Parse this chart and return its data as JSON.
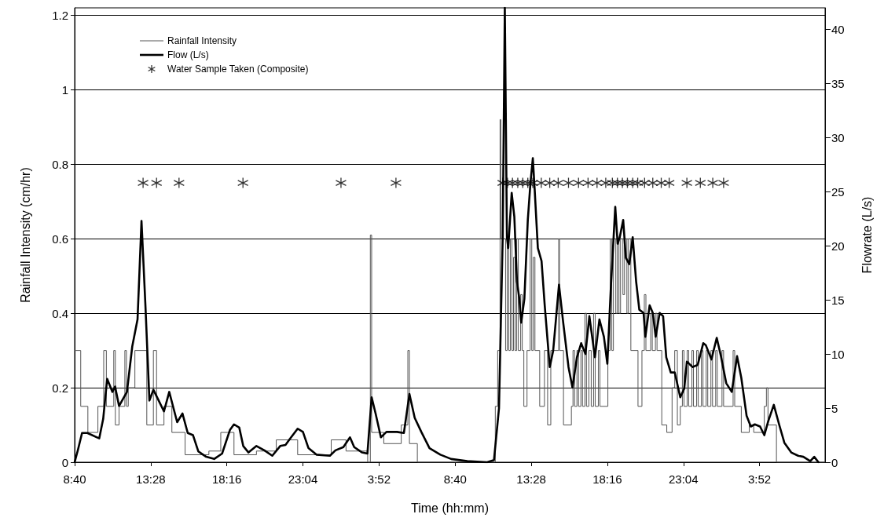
{
  "chart_data": {
    "type": "line",
    "xlabel": "Time (hh:mm)",
    "ylabel": "Rainfall Intensity (cm/hr)",
    "y2label": "Flowrate (L/s)",
    "xlim": [
      "--01-01T08:40",
      "--01-03T08:00"
    ],
    "xticks": [
      {
        "value": "--01-01T08:40",
        "label": "8:40"
      },
      {
        "value": "--01-01T13:28",
        "label": "13:28"
      },
      {
        "value": "--01-01T18:16",
        "label": "18:16"
      },
      {
        "value": "--01-01T23:04",
        "label": "23:04"
      },
      {
        "value": "--01-02T03:52",
        "label": "3:52"
      },
      {
        "value": "--01-02T08:40",
        "label": "8:40"
      },
      {
        "value": "--01-02T13:28",
        "label": "13:28"
      },
      {
        "value": "--01-02T18:16",
        "label": "18:16"
      },
      {
        "value": "--01-02T23:04",
        "label": "23:04"
      },
      {
        "value": "--01-03T03:52",
        "label": "3:52"
      }
    ],
    "ylim": [
      0,
      1.22
    ],
    "yticks": [
      0,
      0.2,
      0.4,
      0.6,
      0.8,
      1,
      1.2
    ],
    "y2lim": [
      0,
      42
    ],
    "y2ticks": [
      0,
      5,
      10,
      15,
      20,
      25,
      30,
      35,
      40
    ],
    "grid": "y",
    "legend": "top left",
    "series": [
      {
        "name": "Rainfall Intensity",
        "type": "step",
        "color": "#555555",
        "marker": "none",
        "x": [
          "--01-01T08:40",
          "--01-01T09:03",
          "--01-01T09:30",
          "--01-01T10:08",
          "--01-01T10:30",
          "--01-01T10:40",
          "--01-01T11:08",
          "--01-01T11:14",
          "--01-01T11:28",
          "--01-01T11:50",
          "--01-01T11:56",
          "--01-01T12:03",
          "--01-01T12:28",
          "--01-01T13:13",
          "--01-01T13:38",
          "--01-01T13:50",
          "--01-01T14:18",
          "--01-01T14:48",
          "--01-01T15:38",
          "--01-01T17:08",
          "--01-01T17:53",
          "--01-01T18:43",
          "--01-01T20:08",
          "--01-01T21:23",
          "--01-01T22:44",
          "--01-02T00:51",
          "--01-02T01:47",
          "--01-02T03:09",
          "--01-02T03:19",
          "--01-02T03:24",
          "--01-02T04:10",
          "--01-02T05:16",
          "--01-02T05:41",
          "--01-02T05:47",
          "--01-02T06:17",
          "--01-02T11:12",
          "--01-02T11:21",
          "--01-02T11:30",
          "--01-02T11:33",
          "--01-02T11:51",
          "--01-02T11:57",
          "--01-02T12:03",
          "--01-02T12:09",
          "--01-02T12:15",
          "--01-02T12:21",
          "--01-02T12:27",
          "--01-02T12:33",
          "--01-02T12:39",
          "--01-02T12:48",
          "--01-02T12:54",
          "--01-02T13:00",
          "--01-02T13:12",
          "--01-02T13:24",
          "--01-02T13:30",
          "--01-02T13:36",
          "--01-02T13:42",
          "--01-02T14:00",
          "--01-02T14:18",
          "--01-02T14:30",
          "--01-02T14:42",
          "--01-02T15:12",
          "--01-02T15:15",
          "--01-02T15:30",
          "--01-02T16:00",
          "--01-02T16:06",
          "--01-02T16:12",
          "--01-02T16:21",
          "--01-02T16:27",
          "--01-02T16:36",
          "--01-02T16:42",
          "--01-02T16:51",
          "--01-02T16:57",
          "--01-02T17:06",
          "--01-02T17:15",
          "--01-02T17:24",
          "--01-02T17:30",
          "--01-02T17:42",
          "--01-02T17:48",
          "--01-02T18:18",
          "--01-02T18:27",
          "--01-02T18:33",
          "--01-02T18:39",
          "--01-02T18:48",
          "--01-02T18:54",
          "--01-02T19:00",
          "--01-02T19:06",
          "--01-02T19:15",
          "--01-02T19:21",
          "--01-02T19:30",
          "--01-02T19:36",
          "--01-02T19:45",
          "--01-02T20:12",
          "--01-02T20:27",
          "--01-02T20:36",
          "--01-02T20:42",
          "--01-02T21:00",
          "--01-02T21:06",
          "--01-02T21:18",
          "--01-02T21:24",
          "--01-02T21:42",
          "--01-02T22:01",
          "--01-02T22:21",
          "--01-02T22:31",
          "--01-02T22:41",
          "--01-02T22:52",
          "--01-02T23:00",
          "--01-02T23:06",
          "--01-02T23:18",
          "--01-02T23:24",
          "--01-02T23:36",
          "--01-02T23:42",
          "--01-02T23:54",
          "--01-03T00:00",
          "--01-03T00:12",
          "--01-03T00:18",
          "--01-03T00:30",
          "--01-03T00:36",
          "--01-03T00:48",
          "--01-03T00:54",
          "--01-03T01:06",
          "--01-03T01:12",
          "--01-03T01:30",
          "--01-03T01:36",
          "--01-03T02:12",
          "--01-03T02:18",
          "--01-03T02:43",
          "--01-03T03:13",
          "--01-03T03:30",
          "--01-03T04:10",
          "--01-03T04:18",
          "--01-03T04:24",
          "--01-03T04:56",
          "--01-03T08:00"
        ],
        "values": [
          0.3,
          0.15,
          0.08,
          0.15,
          0.3,
          0.15,
          0.3,
          0.1,
          0.15,
          0.3,
          0.15,
          0.2,
          0.3,
          0.1,
          0.3,
          0.1,
          0.15,
          0.08,
          0.02,
          0.03,
          0.08,
          0.02,
          0.03,
          0.06,
          0.02,
          0.06,
          0.03,
          0,
          0.61,
          0.08,
          0.05,
          0.1,
          0.3,
          0.05,
          0,
          0.15,
          0.3,
          0.92,
          0.6,
          0.3,
          0.6,
          0.3,
          0.6,
          0.3,
          0.55,
          0.3,
          0.6,
          0.3,
          0.45,
          0.3,
          0.15,
          0.3,
          0.6,
          0.3,
          0.55,
          0.3,
          0.15,
          0.3,
          0.1,
          0.3,
          0.6,
          0.3,
          0.1,
          0.15,
          0.3,
          0.15,
          0.3,
          0.15,
          0.3,
          0.15,
          0.4,
          0.15,
          0.3,
          0.15,
          0.4,
          0.15,
          0.3,
          0.15,
          0.3,
          0.6,
          0.3,
          0.6,
          0.4,
          0.6,
          0.4,
          0.6,
          0.45,
          0.6,
          0.4,
          0.6,
          0.3,
          0.15,
          0.3,
          0.45,
          0.3,
          0.4,
          0.3,
          0.4,
          0.3,
          0.1,
          0.08,
          0.2,
          0.3,
          0.1,
          0.15,
          0.3,
          0.15,
          0.3,
          0.15,
          0.3,
          0.15,
          0.3,
          0.15,
          0.3,
          0.15,
          0.3,
          0.15,
          0.3,
          0.15,
          0.3,
          0.15,
          0.3,
          0.15,
          0.3,
          0.15,
          0.08,
          0.1,
          0.08,
          0.15,
          0.2,
          0.1,
          0,
          0
        ]
      },
      {
        "name": "Flow (L/s)",
        "axis": "y2",
        "color": "#000000",
        "marker": "none",
        "x": [
          "--01-01T08:40",
          "--01-01T08:53",
          "--01-01T09:08",
          "--01-01T09:28",
          "--01-01T10:13",
          "--01-01T10:28",
          "--01-01T10:43",
          "--01-01T11:03",
          "--01-01T11:13",
          "--01-01T11:28",
          "--01-01T11:58",
          "--01-01T12:18",
          "--01-01T12:38",
          "--01-01T12:53",
          "--01-01T13:08",
          "--01-01T13:23",
          "--01-01T13:38",
          "--01-01T13:58",
          "--01-01T14:18",
          "--01-01T14:38",
          "--01-01T15:08",
          "--01-01T15:28",
          "--01-01T15:48",
          "--01-01T16:08",
          "--01-01T16:28",
          "--01-01T16:58",
          "--01-01T17:28",
          "--01-01T17:58",
          "--01-01T18:28",
          "--01-01T18:43",
          "--01-01T19:03",
          "--01-01T19:18",
          "--01-01T19:38",
          "--01-01T20:08",
          "--01-01T20:38",
          "--01-01T21:08",
          "--01-01T21:38",
          "--01-01T21:58",
          "--01-01T22:13",
          "--01-01T22:44",
          "--01-01T23:04",
          "--01-01T23:25",
          "--01-01T23:55",
          "--01-02T00:46",
          "--01-02T01:07",
          "--01-02T01:37",
          "--01-02T02:02",
          "--01-02T02:18",
          "--01-02T02:48",
          "--01-02T03:08",
          "--01-02T03:24",
          "--01-02T03:39",
          "--01-02T03:59",
          "--01-02T04:20",
          "--01-02T05:00",
          "--01-02T05:26",
          "--01-02T05:47",
          "--01-02T06:07",
          "--01-02T06:32",
          "--01-02T07:03",
          "--01-02T07:44",
          "--01-02T08:25",
          "--01-02T09:26",
          "--01-02T10:41",
          "--01-02T11:07",
          "--01-02T11:26",
          "--01-02T11:40",
          "--01-02T11:48",
          "--01-02T11:56",
          "--01-02T12:01",
          "--01-02T12:14",
          "--01-02T12:24",
          "--01-02T12:34",
          "--01-02T12:43",
          "--01-02T12:50",
          "--01-02T13:02",
          "--01-02T13:15",
          "--01-02T13:25",
          "--01-02T13:34",
          "--01-02T13:41",
          "--01-02T13:53",
          "--01-02T14:07",
          "--01-02T14:19",
          "--01-02T14:38",
          "--01-02T14:51",
          "--01-02T15:13",
          "--01-02T15:29",
          "--01-02T15:49",
          "--01-02T16:04",
          "--01-02T16:21",
          "--01-02T16:37",
          "--01-02T16:53",
          "--01-02T17:08",
          "--01-02T17:29",
          "--01-02T17:46",
          "--01-02T18:03",
          "--01-02T18:16",
          "--01-02T18:29",
          "--01-02T18:46",
          "--01-02T18:55",
          "--01-02T19:03",
          "--01-02T19:16",
          "--01-02T19:26",
          "--01-02T19:39",
          "--01-02T19:52",
          "--01-02T20:05",
          "--01-02T20:17",
          "--01-02T20:33",
          "--01-02T20:40",
          "--01-02T20:56",
          "--01-02T21:08",
          "--01-02T21:19",
          "--01-02T21:34",
          "--01-02T21:47",
          "--01-02T21:59",
          "--01-02T22:16",
          "--01-02T22:31",
          "--01-02T22:52",
          "--01-02T23:07",
          "--01-02T23:17",
          "--01-02T23:38",
          "--01-02T23:58",
          "--01-03T00:19",
          "--01-03T00:29",
          "--01-03T00:50",
          "--01-03T01:10",
          "--01-03T01:26",
          "--01-03T01:46",
          "--01-03T02:07",
          "--01-03T02:27",
          "--01-03T02:43",
          "--01-03T03:03",
          "--01-03T03:19",
          "--01-03T03:34",
          "--01-03T03:54",
          "--01-03T04:10",
          "--01-03T04:25",
          "--01-03T04:46",
          "--01-03T05:06",
          "--01-03T05:26",
          "--01-03T05:52",
          "--01-03T06:18",
          "--01-03T06:38",
          "--01-03T07:04",
          "--01-03T07:19",
          "--01-03T07:35"
        ],
        "values": [
          0,
          1.2,
          2.7,
          2.7,
          2.2,
          4.0,
          7.7,
          6.5,
          7.0,
          5.2,
          6.5,
          10.7,
          13.2,
          22.3,
          14.4,
          5.7,
          6.7,
          5.7,
          4.7,
          6.5,
          3.7,
          4.5,
          2.7,
          2.5,
          1.0,
          0.5,
          0.3,
          0.8,
          3.0,
          3.5,
          3.2,
          1.5,
          0.9,
          1.5,
          1.1,
          0.6,
          1.5,
          1.6,
          2.1,
          3.1,
          2.8,
          1.3,
          0.7,
          0.6,
          1.1,
          1.4,
          2.3,
          1.4,
          0.9,
          0.8,
          6.0,
          4.5,
          2.3,
          2.8,
          2.8,
          2.7,
          6.3,
          4.1,
          2.8,
          1.3,
          0.7,
          0.3,
          0.1,
          0,
          0.2,
          5.0,
          20.8,
          42,
          20.8,
          19.8,
          24.9,
          22.7,
          16.7,
          15.1,
          12.9,
          15.1,
          22.4,
          25.8,
          28.1,
          25.2,
          19.8,
          18.6,
          14.5,
          8.8,
          10.3,
          16.4,
          12.9,
          8.8,
          6.9,
          9.7,
          11.0,
          10.0,
          13.5,
          9.7,
          13.2,
          11.6,
          9.1,
          16.0,
          23.6,
          20.2,
          20.8,
          22.4,
          18.9,
          18.3,
          20.8,
          16.7,
          14.1,
          13.8,
          11.6,
          14.5,
          13.8,
          11.6,
          13.8,
          13.5,
          9.7,
          8.3,
          8.3,
          6.0,
          6.8,
          9.3,
          8.8,
          9.0,
          11.0,
          10.8,
          9.5,
          11.5,
          9.8,
          7.3,
          6.5,
          9.8,
          7.8,
          4.3,
          3.3,
          3.5,
          3.3,
          2.5,
          3.8,
          5.3,
          3.5,
          1.8,
          0.9,
          0.6,
          0.5,
          0.1,
          0.5,
          0
        ]
      },
      {
        "name": "Water Sample Taken (Composite)",
        "type": "scatter",
        "color": "#000000",
        "marker": "cross",
        "x": [
          "--01-01T12:59",
          "--01-01T13:50",
          "--01-01T15:15",
          "--01-01T19:17",
          "--01-02T01:28",
          "--01-02T04:56",
          "--01-02T11:40",
          "--01-02T11:58",
          "--01-02T12:17",
          "--01-02T12:37",
          "--01-02T12:56",
          "--01-02T13:15",
          "--01-02T13:34",
          "--01-02T14:06",
          "--01-02T14:38",
          "--01-02T15:10",
          "--01-02T15:49",
          "--01-02T16:27",
          "--01-02T17:03",
          "--01-02T17:37",
          "--01-02T18:10",
          "--01-02T18:35",
          "--01-02T18:54",
          "--01-02T19:13",
          "--01-02T19:32",
          "--01-02T19:52",
          "--01-02T20:11",
          "--01-02T20:37",
          "--01-02T21:08",
          "--01-02T21:40",
          "--01-02T22:10",
          "--01-02T23:17",
          "--01-03T00:08",
          "--01-03T00:55",
          "--01-03T01:36"
        ],
        "values": [
          0.75,
          0.75,
          0.75,
          0.75,
          0.75,
          0.75,
          0.75,
          0.75,
          0.75,
          0.75,
          0.75,
          0.75,
          0.75,
          0.75,
          0.75,
          0.75,
          0.75,
          0.75,
          0.75,
          0.75,
          0.75,
          0.75,
          0.75,
          0.75,
          0.75,
          0.75,
          0.75,
          0.75,
          0.75,
          0.75,
          0.75,
          0.75,
          0.75,
          0.75,
          0.75
        ]
      }
    ]
  }
}
